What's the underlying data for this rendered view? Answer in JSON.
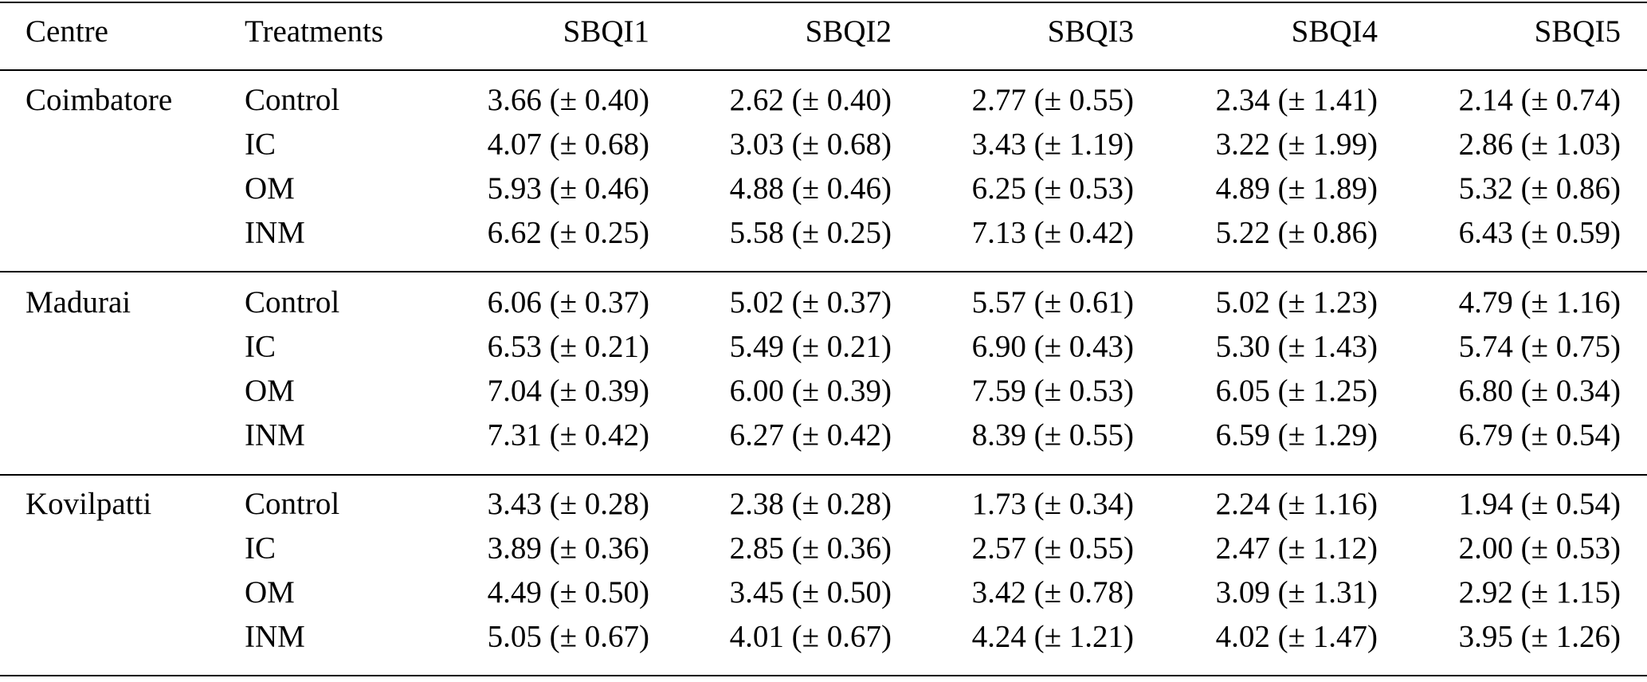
{
  "table": {
    "header": [
      "Centre",
      "Treatments",
      "SBQI1",
      "SBQI2",
      "SBQI3",
      "SBQI4",
      "SBQI5"
    ],
    "groups": [
      {
        "centre": "Coimbatore",
        "rows": [
          [
            "Control",
            "3.66 (± 0.40)",
            "2.62 (± 0.40)",
            "2.77 (± 0.55)",
            "2.34 (± 1.41)",
            "2.14 (± 0.74)"
          ],
          [
            "IC",
            "4.07 (± 0.68)",
            "3.03 (± 0.68)",
            "3.43 (± 1.19)",
            "3.22 (± 1.99)",
            "2.86 (± 1.03)"
          ],
          [
            "OM",
            "5.93 (± 0.46)",
            "4.88 (± 0.46)",
            "6.25 (± 0.53)",
            "4.89 (± 1.89)",
            "5.32 (± 0.86)"
          ],
          [
            "INM",
            "6.62 (± 0.25)",
            "5.58 (± 0.25)",
            "7.13 (± 0.42)",
            "5.22 (± 0.86)",
            "6.43 (± 0.59)"
          ]
        ]
      },
      {
        "centre": "Madurai",
        "rows": [
          [
            "Control",
            "6.06 (± 0.37)",
            "5.02 (± 0.37)",
            "5.57 (± 0.61)",
            "5.02 (± 1.23)",
            "4.79 (± 1.16)"
          ],
          [
            "IC",
            "6.53 (± 0.21)",
            "5.49 (± 0.21)",
            "6.90 (± 0.43)",
            "5.30 (± 1.43)",
            "5.74 (± 0.75)"
          ],
          [
            "OM",
            "7.04 (± 0.39)",
            "6.00 (± 0.39)",
            "7.59 (± 0.53)",
            "6.05 (± 1.25)",
            "6.80 (± 0.34)"
          ],
          [
            "INM",
            "7.31 (± 0.42)",
            "6.27 (± 0.42)",
            "8.39 (± 0.55)",
            "6.59 (± 1.29)",
            "6.79 (± 0.54)"
          ]
        ]
      },
      {
        "centre": "Kovilpatti",
        "rows": [
          [
            "Control",
            "3.43 (± 0.28)",
            "2.38 (± 0.28)",
            "1.73 (± 0.34)",
            "2.24 (± 1.16)",
            "1.94 (± 0.54)"
          ],
          [
            "IC",
            "3.89 (± 0.36)",
            "2.85 (± 0.36)",
            "2.57 (± 0.55)",
            "2.47 (± 1.12)",
            "2.00 (± 0.53)"
          ],
          [
            "OM",
            "4.49 (± 0.50)",
            "3.45 (± 0.50)",
            "3.42 (± 0.78)",
            "3.09 (± 1.31)",
            "2.92 (± 1.15)"
          ],
          [
            "INM",
            "5.05 (± 0.67)",
            "4.01 (± 0.67)",
            "4.24 (± 1.21)",
            "4.02 (± 1.47)",
            "3.95 (± 1.26)"
          ]
        ]
      }
    ]
  }
}
